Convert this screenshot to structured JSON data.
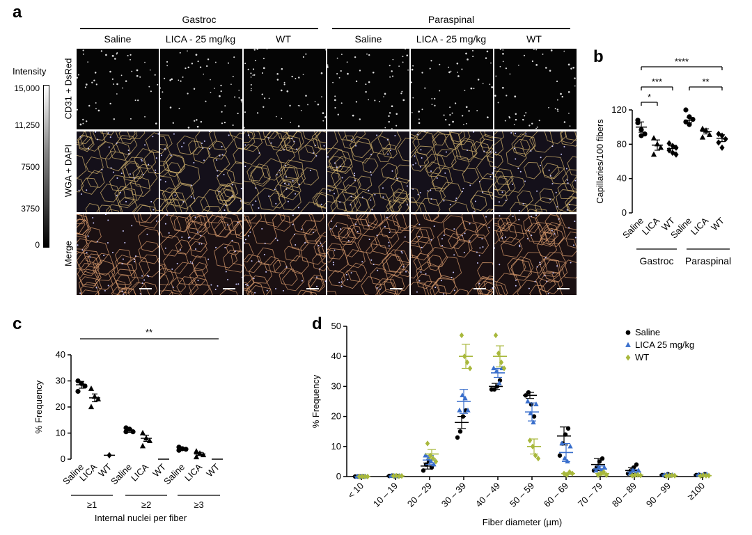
{
  "panel_a": {
    "letter": "a",
    "groups": [
      "Gastroc",
      "Paraspinal"
    ],
    "columns": [
      "Saline",
      "LICA - 25 mg/kg",
      "WT",
      "Saline",
      "LICA - 25 mg/kg",
      "WT"
    ],
    "rows": [
      "CD31 + DsRed",
      "WGA + DAPI",
      "Merge"
    ],
    "colorbar": {
      "title": "Intensity",
      "ticks": [
        "15,000",
        "11,250",
        "7500",
        "3750",
        "0"
      ]
    }
  },
  "chart_data": [
    {
      "panel": "b",
      "type": "scatter",
      "title": "",
      "ylabel": "Capillaries/100 fibers",
      "ylim": [
        0,
        120
      ],
      "yticks": [
        "0",
        "40",
        "80",
        "120"
      ],
      "categories": [
        "Saline",
        "LICA",
        "WT",
        "Saline",
        "LICA",
        "WT"
      ],
      "group_labels": [
        "Gastroc",
        "Paraspinal"
      ],
      "significance": [
        "****",
        "***",
        "**",
        "*"
      ],
      "series": [
        {
          "name": "Gastroc Saline",
          "marker": "circle",
          "mean": 100,
          "sem": 6,
          "values": [
            105,
            97,
            92,
            108,
            90
          ]
        },
        {
          "name": "Gastroc LICA",
          "marker": "triangle",
          "mean": 79,
          "sem": 6,
          "values": [
            87,
            80,
            76,
            68
          ]
        },
        {
          "name": "Gastroc WT",
          "marker": "diamond",
          "mean": 75,
          "sem": 4,
          "values": [
            81,
            78,
            76,
            73,
            70,
            68
          ]
        },
        {
          "name": "Paraspinal Saline",
          "marker": "circle",
          "mean": 108,
          "sem": 3,
          "values": [
            120,
            112,
            109,
            106,
            103
          ]
        },
        {
          "name": "Paraspinal LICA",
          "marker": "triangle",
          "mean": 95,
          "sem": 3,
          "values": [
            98,
            96,
            91,
            88
          ]
        },
        {
          "name": "Paraspinal WT",
          "marker": "diamond",
          "mean": 87,
          "sem": 4,
          "values": [
            92,
            90,
            86,
            82,
            76
          ]
        }
      ]
    },
    {
      "panel": "c",
      "type": "scatter",
      "ylabel": "% Frequency",
      "xlabel": "Internal nuclei per fiber",
      "ylim": [
        0,
        40
      ],
      "yticks": [
        "0",
        "10",
        "20",
        "30",
        "40"
      ],
      "categories": [
        "Saline",
        "LICA",
        "WT",
        "Saline",
        "LICA",
        "WT",
        "Saline",
        "LICA",
        "WT"
      ],
      "group_labels": [
        "≥1",
        "≥2",
        "≥3"
      ],
      "significance": [
        "**"
      ],
      "series": [
        {
          "name": "≥1 Saline",
          "marker": "circle",
          "mean": 28.5,
          "sem": 1.3,
          "values": [
            30,
            29,
            28,
            26
          ]
        },
        {
          "name": "≥1 LICA",
          "marker": "triangle",
          "mean": 23.5,
          "sem": 1.5,
          "values": [
            27,
            24,
            23,
            20
          ]
        },
        {
          "name": "≥1 WT",
          "marker": "diamond",
          "mean": 1.5,
          "sem": 0,
          "values": [
            1.5
          ]
        },
        {
          "name": "≥2 Saline",
          "marker": "circle",
          "mean": 11,
          "sem": 0.7,
          "values": [
            12,
            11.5,
            10.5,
            10.5
          ]
        },
        {
          "name": "≥2 LICA",
          "marker": "triangle",
          "mean": 8,
          "sem": 1.2,
          "values": [
            10,
            8,
            7,
            5
          ]
        },
        {
          "name": "≥2 WT",
          "marker": "diamond",
          "mean": 0,
          "sem": 0,
          "values": [
            0
          ]
        },
        {
          "name": "≥3 Saline",
          "marker": "circle",
          "mean": 4,
          "sem": 0.4,
          "values": [
            4.6,
            4,
            3.8,
            3.4
          ]
        },
        {
          "name": "≥3 LICA",
          "marker": "triangle",
          "mean": 2,
          "sem": 0.6,
          "values": [
            3,
            2.2,
            1.6,
            0.8
          ]
        },
        {
          "name": "≥3 WT",
          "marker": "diamond",
          "mean": 0,
          "sem": 0,
          "values": [
            0
          ]
        }
      ]
    },
    {
      "panel": "d",
      "type": "scatter",
      "ylabel": "% Frequency",
      "xlabel": "Fiber diameter (µm)",
      "ylim": [
        0,
        50
      ],
      "yticks": [
        "0",
        "10",
        "20",
        "30",
        "40",
        "50"
      ],
      "categories": [
        "< 10",
        "10 – 19",
        "20 – 29",
        "30 – 39",
        "40 – 49",
        "50 – 59",
        "60 – 69",
        "70 – 79",
        "80 – 89",
        "90 – 99",
        "≥100"
      ],
      "legend": [
        {
          "name": "Saline",
          "color": "#000000",
          "marker": "circle"
        },
        {
          "name": "LICA 25 mg/kg",
          "color": "#3a6fcc",
          "marker": "triangle"
        },
        {
          "name": "WT",
          "color": "#a8b83c",
          "marker": "diamond"
        }
      ],
      "series": [
        {
          "name": "Saline",
          "color": "#000000",
          "marker": "circle",
          "means": [
            0,
            0.2,
            3.5,
            18,
            30,
            27,
            13.5,
            4,
            2,
            0.5,
            0.5
          ],
          "sems": [
            0.1,
            0.1,
            1,
            2,
            1,
            1,
            3,
            2,
            1,
            0.3,
            0.3
          ],
          "points": [
            [
              0,
              0,
              0,
              0
            ],
            [
              0.2,
              0.3,
              0.1,
              0.2
            ],
            [
              2,
              4,
              5,
              3
            ],
            [
              13,
              15,
              20,
              22
            ],
            [
              29,
              29,
              30,
              32
            ],
            [
              27,
              28,
              24,
              20
            ],
            [
              7,
              11,
              14,
              16
            ],
            [
              2,
              3,
              5,
              6
            ],
            [
              1,
              2,
              3,
              4
            ],
            [
              0.5,
              0.3,
              0.8,
              0.4
            ],
            [
              0.5,
              0.6,
              0.3,
              0.8
            ]
          ]
        },
        {
          "name": "LICA 25 mg/kg",
          "color": "#3a6fcc",
          "marker": "triangle",
          "means": [
            0,
            0.2,
            5.5,
            25,
            34.5,
            21.5,
            8,
            2.5,
            1.5,
            0.5,
            0.5
          ],
          "sems": [
            0.1,
            0.1,
            1.5,
            4,
            1.5,
            3,
            3,
            1,
            0.8,
            0.2,
            0.2
          ],
          "points": [
            [
              0,
              0,
              0,
              0
            ],
            [
              0.2,
              0.2,
              0.1,
              0.2
            ],
            [
              7,
              6,
              5,
              4
            ],
            [
              22,
              27,
              26,
              22
            ],
            [
              36,
              35,
              31,
              36
            ],
            [
              25,
              21,
              18,
              24
            ],
            [
              11,
              6,
              5,
              10
            ],
            [
              2,
              3,
              2,
              3
            ],
            [
              1,
              2,
              1,
              2
            ],
            [
              0.5,
              0.6,
              0.4,
              0.5
            ],
            [
              0.6,
              0.4,
              0.5,
              0.7
            ]
          ]
        },
        {
          "name": "WT",
          "color": "#a8b83c",
          "marker": "diamond",
          "means": [
            0,
            0.2,
            7.5,
            40,
            40,
            10,
            1,
            1,
            0.5,
            0.3,
            0.3
          ],
          "sems": [
            0.1,
            0.1,
            1.5,
            4,
            3.5,
            2.5,
            0.3,
            0.5,
            0.2,
            0.1,
            0.1
          ],
          "points": [
            [
              0,
              0,
              0,
              0
            ],
            [
              0.2,
              0.3,
              0.1,
              0.2
            ],
            [
              11,
              7,
              6,
              5
            ],
            [
              47,
              40,
              38,
              36
            ],
            [
              47,
              41,
              38,
              36
            ],
            [
              12,
              10,
              7,
              6
            ],
            [
              1,
              0.5,
              1.5,
              1
            ],
            [
              0.5,
              1,
              1.5,
              0.5
            ],
            [
              0.3,
              0.5,
              0.6,
              0.4
            ],
            [
              0.2,
              0.3,
              0.4,
              0.3
            ],
            [
              0.2,
              0.4,
              0.3,
              0.3
            ]
          ]
        }
      ]
    }
  ]
}
